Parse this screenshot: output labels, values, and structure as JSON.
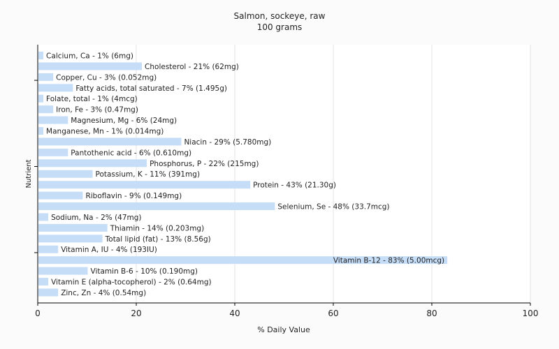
{
  "chart_data": {
    "type": "bar",
    "orientation": "horizontal",
    "title": "Salmon, sockeye, raw",
    "subtitle": "100 grams",
    "xlabel": "% Daily Value",
    "ylabel": "Nutrient",
    "xlim": [
      0,
      100
    ],
    "xticks": [
      0,
      20,
      40,
      60,
      80,
      100
    ],
    "grid": true,
    "bar_color": "#c6ddf8",
    "categories": [
      "Calcium, Ca - 1% (6mg)",
      "Cholesterol - 21% (62mg)",
      "Copper, Cu - 3% (0.052mg)",
      "Fatty acids, total saturated - 7% (1.495g)",
      "Folate, total - 1% (4mcg)",
      "Iron, Fe - 3% (0.47mg)",
      "Magnesium, Mg - 6% (24mg)",
      "Manganese, Mn - 1% (0.014mg)",
      "Niacin - 29% (5.780mg)",
      "Pantothenic acid - 6% (0.610mg)",
      "Phosphorus, P - 22% (215mg)",
      "Potassium, K - 11% (391mg)",
      "Protein - 43% (21.30g)",
      "Riboflavin - 9% (0.149mg)",
      "Selenium, Se - 48% (33.7mcg)",
      "Sodium, Na - 2% (47mg)",
      "Thiamin - 14% (0.203mg)",
      "Total lipid (fat) - 13% (8.56g)",
      "Vitamin A, IU - 4% (193IU)",
      "Vitamin B-12 - 83% (5.00mcg)",
      "Vitamin B-6 - 10% (0.190mg)",
      "Vitamin E (alpha-tocopherol) - 2% (0.64mg)",
      "Zinc, Zn - 4% (0.54mg)"
    ],
    "values": [
      1,
      21,
      3,
      7,
      1,
      3,
      6,
      1,
      29,
      6,
      22,
      11,
      43,
      9,
      48,
      2,
      14,
      13,
      4,
      83,
      10,
      2,
      4
    ]
  }
}
